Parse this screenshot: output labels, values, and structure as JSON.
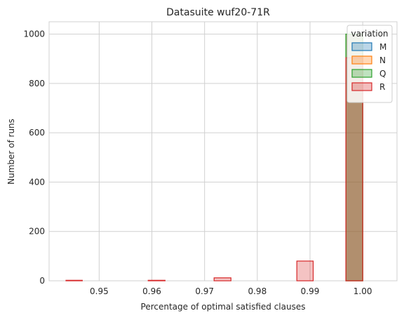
{
  "chart_data": {
    "type": "bar",
    "title": "Datasuite wuf20-71R",
    "xlabel": "Percentage of optimal satisfied clauses",
    "ylabel": "Number of runs",
    "xlim": [
      0.9405,
      1.0065
    ],
    "ylim": [
      0,
      1050
    ],
    "xticks": [
      0.95,
      0.96,
      0.97,
      0.98,
      0.99,
      1.0
    ],
    "xtick_labels": [
      "0.95",
      "0.96",
      "0.97",
      "0.98",
      "0.99",
      "1.00"
    ],
    "yticks": [
      0,
      200,
      400,
      600,
      800,
      1000
    ],
    "ytick_labels": [
      "0",
      "200",
      "400",
      "600",
      "800",
      "1000"
    ],
    "grid": true,
    "legend": {
      "title": "variation",
      "placement": "top-right"
    },
    "bin_edges": [
      0.9437,
      0.9468,
      0.95,
      0.9531,
      0.9562,
      0.9593,
      0.9625,
      0.9656,
      0.9687,
      0.9718,
      0.975,
      0.9781,
      0.9812,
      0.9843,
      0.9875,
      0.9906,
      0.9937,
      0.9968,
      1.0
    ],
    "series": [
      {
        "name": "M",
        "color": "#1f77b4",
        "values": [
          0,
          0,
          0,
          0,
          0,
          0,
          0,
          0,
          0,
          0,
          0,
          0,
          0,
          0,
          0,
          0,
          0,
          1000
        ]
      },
      {
        "name": "N",
        "color": "#ff7f0e",
        "values": [
          0,
          0,
          0,
          0,
          0,
          0,
          0,
          0,
          0,
          0,
          0,
          0,
          0,
          0,
          0,
          0,
          0,
          1000
        ]
      },
      {
        "name": "Q",
        "color": "#2ca02c",
        "values": [
          0,
          0,
          0,
          0,
          0,
          0,
          0,
          0,
          0,
          0,
          0,
          0,
          0,
          0,
          0,
          0,
          0,
          1000
        ]
      },
      {
        "name": "R",
        "color": "#d62728",
        "values": [
          2,
          0,
          0,
          0,
          0,
          2,
          0,
          0,
          0,
          12,
          0,
          0,
          0,
          0,
          80,
          0,
          0,
          904
        ]
      }
    ]
  }
}
